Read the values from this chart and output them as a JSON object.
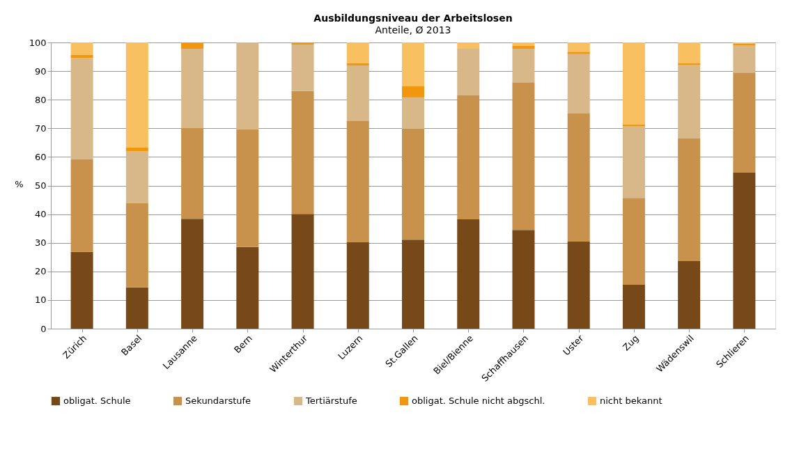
{
  "chart_data": {
    "type": "bar",
    "stacked": true,
    "title": "Ausbildungsniveau der Arbeitslosen",
    "subtitle": "Anteile, Ø 2013",
    "ylabel": "%",
    "categories": [
      "Zürich",
      "Basel",
      "Lausanne",
      "Bern",
      "Winterthur",
      "Luzern",
      "St.Gallen",
      "Biel/Bienne",
      "Schaffhausen",
      "Uster",
      "Zug",
      "Wädenswil",
      "Schlieren"
    ],
    "series": [
      {
        "name": "obligat. Schule",
        "color": "#774818",
        "values": [
          26.8,
          14.4,
          38.4,
          28.5,
          40.1,
          30.2,
          31.1,
          38.2,
          34.5,
          30.4,
          15.3,
          23.6,
          54.5
        ]
      },
      {
        "name": "Sekundarstufe",
        "color": "#c8924c",
        "values": [
          32.3,
          29.4,
          31.7,
          41.1,
          42.9,
          42.5,
          38.7,
          43.3,
          51.6,
          44.8,
          30.4,
          42.8,
          35.0
        ]
      },
      {
        "name": "Tertiärstufe",
        "color": "#d8b888",
        "values": [
          35.5,
          18.2,
          27.7,
          30.4,
          16.3,
          19.3,
          11.0,
          16.3,
          11.7,
          20.7,
          25.1,
          25.8,
          9.5
        ]
      },
      {
        "name": "obligat. Schule nicht abgschl.",
        "color": "#f0960f",
        "values": [
          1.0,
          1.3,
          2.2,
          0,
          0.7,
          0.7,
          3.9,
          0,
          1.0,
          0.9,
          0.5,
          0.5,
          0.5
        ]
      },
      {
        "name": "nicht bekannt",
        "color": "#f8c060",
        "values": [
          4.4,
          36.7,
          0,
          0,
          0,
          7.3,
          15.3,
          2.2,
          1.2,
          3.2,
          28.7,
          7.3,
          0.5
        ]
      }
    ],
    "ylim": [
      0,
      100
    ],
    "yticks": [
      0,
      10,
      20,
      30,
      40,
      50,
      60,
      70,
      80,
      90,
      100
    ],
    "grid": "y",
    "legend": "bottom"
  }
}
